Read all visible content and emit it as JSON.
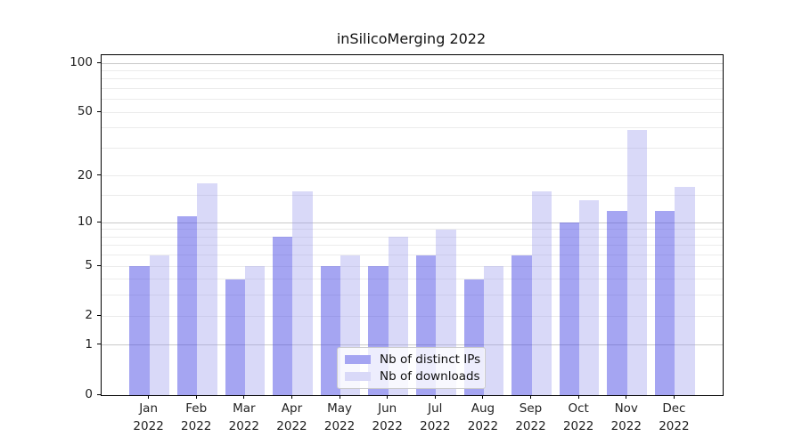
{
  "chart_data": {
    "type": "bar",
    "title": "inSilicoMerging 2022",
    "categories": [
      "Jan",
      "Feb",
      "Mar",
      "Apr",
      "May",
      "Jun",
      "Jul",
      "Aug",
      "Sep",
      "Oct",
      "Nov",
      "Dec"
    ],
    "category_year": "2022",
    "series": [
      {
        "name": "Nb of distinct IPs",
        "color": "#a5a5f2",
        "values": [
          5,
          11,
          4,
          8,
          5,
          5,
          6,
          4,
          6,
          10,
          12,
          12
        ]
      },
      {
        "name": "Nb of downloads",
        "color": "#d9d9f8",
        "values": [
          6,
          18,
          5,
          16,
          6,
          8,
          9,
          5,
          16,
          14,
          39,
          17
        ]
      }
    ],
    "xlabel": "",
    "ylabel": "",
    "y_scale": "log10(1+x)",
    "ylim": [
      0,
      112
    ],
    "y_tick_values": [
      0,
      1,
      2,
      5,
      10,
      20,
      50,
      100
    ],
    "y_major_gridlines": [
      1,
      10,
      100
    ],
    "y_minor_gridlines": [
      2,
      3,
      4,
      5,
      6,
      7,
      8,
      9,
      15,
      20,
      30,
      40,
      50,
      60,
      70,
      80,
      90
    ],
    "grid": true,
    "legend_position": "lower center",
    "colors": {
      "grid_major": "#c9c9c9",
      "grid_minor": "#ebebeb",
      "axis": "#000000",
      "text": "#222222",
      "background": "#ffffff"
    }
  }
}
